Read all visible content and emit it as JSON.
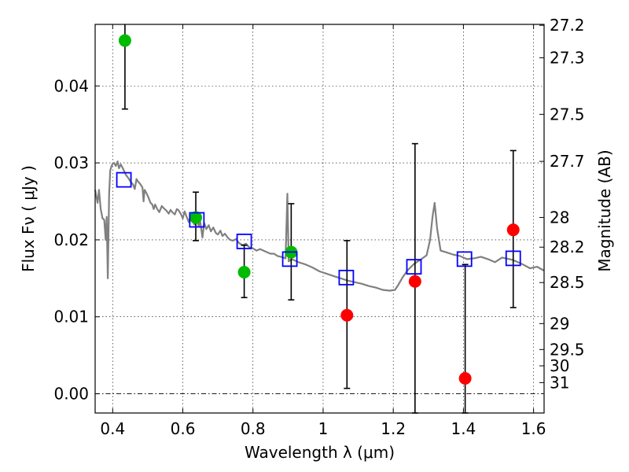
{
  "chart_data": {
    "type": "scatter",
    "xlabel": "Wavelength  λ (μm)",
    "ylabel": "Flux  Fν  ( μJy )",
    "y2label": "Magnitude (AB)",
    "xlim": [
      0.35,
      1.63
    ],
    "ylim": [
      -0.0025,
      0.048
    ],
    "x_ticks": [
      0.4,
      0.6,
      0.8,
      1.0,
      1.2,
      1.4,
      1.6
    ],
    "x_tick_labels": [
      "0.4",
      "0.6",
      "0.8",
      "1",
      "1.2",
      "1.4",
      "1.6"
    ],
    "y_ticks": [
      0.0,
      0.01,
      0.02,
      0.03,
      0.04
    ],
    "y_tick_labels": [
      "0.00",
      "0.01",
      "0.02",
      "0.03",
      "0.04"
    ],
    "y2_ticks": [
      {
        "label": "27.2",
        "flux": 0.04788
      },
      {
        "label": "27.3",
        "flux": 0.04366
      },
      {
        "label": "27.5",
        "flux": 0.03631
      },
      {
        "label": "27.7",
        "flux": 0.0302
      },
      {
        "label": "28",
        "flux": 0.02291
      },
      {
        "label": "28.2",
        "flux": 0.01905
      },
      {
        "label": "28.5",
        "flux": 0.01445
      },
      {
        "label": "29",
        "flux": 0.00912
      },
      {
        "label": "29.5",
        "flux": 0.00575
      },
      {
        "label": "30",
        "flux": 0.00363
      },
      {
        "label": "31",
        "flux": 0.00145
      }
    ],
    "grid": true,
    "template_spectrum": {
      "color": "#808080",
      "points": [
        [
          0.35,
          0.0265
        ],
        [
          0.357,
          0.0248
        ],
        [
          0.361,
          0.0265
        ],
        [
          0.366,
          0.024
        ],
        [
          0.371,
          0.0228
        ],
        [
          0.376,
          0.0226
        ],
        [
          0.38,
          0.02
        ],
        [
          0.383,
          0.023
        ],
        [
          0.386,
          0.015
        ],
        [
          0.39,
          0.026
        ],
        [
          0.393,
          0.029
        ],
        [
          0.396,
          0.0295
        ],
        [
          0.4,
          0.0299
        ],
        [
          0.404,
          0.03
        ],
        [
          0.409,
          0.0296
        ],
        [
          0.414,
          0.0302
        ],
        [
          0.418,
          0.0293
        ],
        [
          0.423,
          0.0298
        ],
        [
          0.43,
          0.0292
        ],
        [
          0.437,
          0.0285
        ],
        [
          0.445,
          0.028
        ],
        [
          0.452,
          0.0275
        ],
        [
          0.458,
          0.0272
        ],
        [
          0.463,
          0.0266
        ],
        [
          0.468,
          0.0279
        ],
        [
          0.472,
          0.0276
        ],
        [
          0.478,
          0.0273
        ],
        [
          0.485,
          0.0268
        ],
        [
          0.488,
          0.025
        ],
        [
          0.491,
          0.0265
        ],
        [
          0.497,
          0.026
        ],
        [
          0.502,
          0.0255
        ],
        [
          0.508,
          0.0248
        ],
        [
          0.513,
          0.0246
        ],
        [
          0.517,
          0.024
        ],
        [
          0.521,
          0.0246
        ],
        [
          0.527,
          0.024
        ],
        [
          0.533,
          0.0236
        ],
        [
          0.54,
          0.0244
        ],
        [
          0.546,
          0.0241
        ],
        [
          0.553,
          0.0238
        ],
        [
          0.56,
          0.0234
        ],
        [
          0.565,
          0.0239
        ],
        [
          0.57,
          0.0236
        ],
        [
          0.577,
          0.0233
        ],
        [
          0.583,
          0.024
        ],
        [
          0.587,
          0.0239
        ],
        [
          0.594,
          0.0234
        ],
        [
          0.6,
          0.0228
        ],
        [
          0.605,
          0.0237
        ],
        [
          0.611,
          0.023
        ],
        [
          0.617,
          0.0223
        ],
        [
          0.622,
          0.0231
        ],
        [
          0.628,
          0.0224
        ],
        [
          0.633,
          0.022
        ],
        [
          0.64,
          0.0226
        ],
        [
          0.645,
          0.0218
        ],
        [
          0.65,
          0.0223
        ],
        [
          0.656,
          0.0203
        ],
        [
          0.661,
          0.0222
        ],
        [
          0.667,
          0.0214
        ],
        [
          0.674,
          0.0219
        ],
        [
          0.68,
          0.0211
        ],
        [
          0.687,
          0.0216
        ],
        [
          0.694,
          0.0209
        ],
        [
          0.7,
          0.0207
        ],
        [
          0.707,
          0.0212
        ],
        [
          0.713,
          0.0205
        ],
        [
          0.72,
          0.0208
        ],
        [
          0.728,
          0.0203
        ],
        [
          0.735,
          0.02
        ],
        [
          0.743,
          0.0199
        ],
        [
          0.752,
          0.0201
        ],
        [
          0.76,
          0.0196
        ],
        [
          0.77,
          0.0193
        ],
        [
          0.78,
          0.0195
        ],
        [
          0.79,
          0.019
        ],
        [
          0.8,
          0.0189
        ],
        [
          0.81,
          0.0186
        ],
        [
          0.82,
          0.0188
        ],
        [
          0.835,
          0.0185
        ],
        [
          0.85,
          0.0182
        ],
        [
          0.86,
          0.0182
        ],
        [
          0.87,
          0.0179
        ],
        [
          0.88,
          0.0178
        ],
        [
          0.893,
          0.0176
        ],
        [
          0.898,
          0.026
        ],
        [
          0.902,
          0.0172
        ],
        [
          0.91,
          0.0175
        ],
        [
          0.93,
          0.0171
        ],
        [
          0.95,
          0.0168
        ],
        [
          0.97,
          0.0164
        ],
        [
          0.99,
          0.0159
        ],
        [
          1.01,
          0.0156
        ],
        [
          1.03,
          0.0153
        ],
        [
          1.05,
          0.015
        ],
        [
          1.07,
          0.0147
        ],
        [
          1.09,
          0.0145
        ],
        [
          1.11,
          0.0143
        ],
        [
          1.13,
          0.014
        ],
        [
          1.15,
          0.0138
        ],
        [
          1.17,
          0.0135
        ],
        [
          1.19,
          0.0134
        ],
        [
          1.205,
          0.0135
        ],
        [
          1.215,
          0.0142
        ],
        [
          1.225,
          0.015
        ],
        [
          1.24,
          0.016
        ],
        [
          1.26,
          0.0169
        ],
        [
          1.28,
          0.0175
        ],
        [
          1.295,
          0.018
        ],
        [
          1.305,
          0.02
        ],
        [
          1.312,
          0.023
        ],
        [
          1.318,
          0.0248
        ],
        [
          1.325,
          0.0215
        ],
        [
          1.335,
          0.0186
        ],
        [
          1.35,
          0.0184
        ],
        [
          1.37,
          0.0181
        ],
        [
          1.39,
          0.0179
        ],
        [
          1.41,
          0.0175
        ],
        [
          1.43,
          0.0176
        ],
        [
          1.45,
          0.0178
        ],
        [
          1.47,
          0.0175
        ],
        [
          1.49,
          0.0171
        ],
        [
          1.51,
          0.0177
        ],
        [
          1.54,
          0.0174
        ],
        [
          1.57,
          0.0168
        ],
        [
          1.59,
          0.0163
        ],
        [
          1.61,
          0.0165
        ],
        [
          1.63,
          0.016
        ]
      ]
    },
    "series": [
      {
        "marker": "filled-circle",
        "color": "#00bb00",
        "points": [
          {
            "x": 0.435,
            "y": 0.0459,
            "yerr_low": 0.037,
            "yerr_high": 0.0485
          },
          {
            "x": 0.637,
            "y": 0.0229,
            "yerr_low": 0.0199,
            "yerr_high": 0.0262
          },
          {
            "x": 0.775,
            "y": 0.0158,
            "yerr_low": 0.0125,
            "yerr_high": 0.0193
          },
          {
            "x": 0.909,
            "y": 0.0184,
            "yerr_low": 0.0122,
            "yerr_high": 0.0247
          }
        ]
      },
      {
        "marker": "filled-circle",
        "color": "#ff0000",
        "points": [
          {
            "x": 1.068,
            "y": 0.0102,
            "yerr_low": 0.0007,
            "yerr_high": 0.0199
          },
          {
            "x": 1.262,
            "y": 0.0146,
            "yerr_low": -0.0025,
            "yerr_high": 0.0325
          },
          {
            "x": 1.405,
            "y": 0.002,
            "yerr_low": -0.0025,
            "yerr_high": 0.0168
          },
          {
            "x": 1.542,
            "y": 0.0213,
            "yerr_low": 0.0112,
            "yerr_high": 0.0316
          }
        ]
      },
      {
        "marker": "open-square",
        "color": "#0000ff",
        "points": [
          {
            "x": 0.432,
            "y": 0.0278
          },
          {
            "x": 0.64,
            "y": 0.0226
          },
          {
            "x": 0.775,
            "y": 0.0198
          },
          {
            "x": 0.905,
            "y": 0.0175
          },
          {
            "x": 1.066,
            "y": 0.0151
          },
          {
            "x": 1.259,
            "y": 0.0165
          },
          {
            "x": 1.403,
            "y": 0.0175
          },
          {
            "x": 1.542,
            "y": 0.0176
          }
        ]
      }
    ]
  }
}
